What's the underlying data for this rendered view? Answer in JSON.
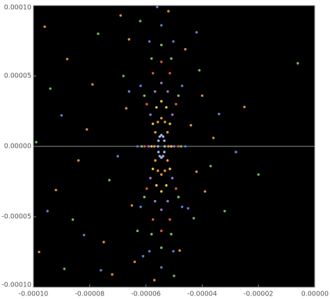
{
  "chart_data": {
    "type": "scatter",
    "xlim": [
      -0.0001,
      0.0
    ],
    "ylim": [
      -0.0001,
      0.0001
    ],
    "xticks": [
      {
        "value": -0.0001,
        "label": "-0.00010"
      },
      {
        "value": -8e-05,
        "label": "-0.00008"
      },
      {
        "value": -6e-05,
        "label": "-0.00006"
      },
      {
        "value": -4e-05,
        "label": "-0.00004"
      },
      {
        "value": -2e-05,
        "label": "-0.00002"
      },
      {
        "value": 0.0,
        "label": "0.00000"
      }
    ],
    "yticks": [
      {
        "value": -0.0001,
        "label": "-0.00010"
      },
      {
        "value": -5e-05,
        "label": "-0.00005"
      },
      {
        "value": 0.0,
        "label": "0.00000"
      },
      {
        "value": 5e-05,
        "label": "0.00005"
      },
      {
        "value": 0.0001,
        "label": "0.00010"
      }
    ],
    "zero_line": true,
    "series": [
      {
        "color": "#9fb4ec",
        "x": [
          -5.33e-05,
          -5.346e-05,
          -5.39e-05,
          -5.45e-05,
          -5.51e-05,
          -5.554e-05,
          -5.57e-05,
          -5.554e-05,
          -5.51e-05,
          -5.45e-05,
          -5.39e-05,
          -5.346e-05
        ],
        "y": [
          0,
          4e-06,
          6.93e-06,
          8e-06,
          6.93e-06,
          4e-06,
          0,
          -4e-06,
          -6.93e-06,
          -8e-06,
          -6.93e-06,
          -4e-06
        ]
      },
      {
        "color": "#e89a35",
        "x": [
          -5.2e-05,
          -5.233e-05,
          -5.325e-05,
          -5.45e-05,
          -5.575e-05,
          -5.667e-05,
          -5.7e-05,
          -5.667e-05,
          -5.575e-05,
          -5.45e-05,
          -5.325e-05,
          -5.233e-05
        ],
        "y": [
          0,
          1e-05,
          1.732e-05,
          2e-05,
          1.732e-05,
          1e-05,
          0,
          -1e-05,
          -1.732e-05,
          -2e-05,
          -1.732e-05,
          -1e-05
        ]
      },
      {
        "color": "#e8c43a",
        "x": [
          -5.1e-05,
          -5.147e-05,
          -5.275e-05,
          -5.45e-05,
          -5.625e-05,
          -5.753e-05,
          -5.8e-05,
          -5.753e-05,
          -5.625e-05,
          -5.45e-05,
          -5.275e-05,
          -5.147e-05
        ],
        "y": [
          0,
          1.6e-05,
          2.771e-05,
          3.2e-05,
          2.771e-05,
          1.6e-05,
          0,
          -1.6e-05,
          -2.771e-05,
          -3.2e-05,
          -2.771e-05,
          -1.6e-05
        ]
      },
      {
        "color": "#a070d0",
        "x": [
          -5e-05,
          -5.06e-05,
          -5.225e-05,
          -5.45e-05,
          -5.675e-05,
          -5.84e-05,
          -5.9e-05,
          -5.84e-05,
          -5.675e-05,
          -5.45e-05,
          -5.225e-05,
          -5.06e-05
        ],
        "y": [
          0,
          2.25e-05,
          3.897e-05,
          4.5e-05,
          3.897e-05,
          2.25e-05,
          0,
          -2.25e-05,
          -3.897e-05,
          -4.5e-05,
          -3.897e-05,
          -2.25e-05
        ]
      },
      {
        "color": "#d85a3a",
        "x": [
          -4.85e-05,
          -4.93e-05,
          -5.15e-05,
          -5.45e-05,
          -5.75e-05,
          -5.97e-05,
          -6.05e-05,
          -5.97e-05,
          -5.75e-05,
          -5.45e-05,
          -5.15e-05,
          -4.93e-05
        ],
        "y": [
          0,
          3e-05,
          5.196e-05,
          6e-05,
          5.196e-05,
          3e-05,
          0,
          -3e-05,
          -5.196e-05,
          -6e-05,
          -5.196e-05,
          -3e-05
        ]
      },
      {
        "color": "#7ac060",
        "x": [
          -4.75e-05,
          -4.844e-05,
          -5.1e-05,
          -5.45e-05,
          -5.8e-05,
          -6.056e-05,
          -6.15e-05,
          -6.056e-05,
          -5.8e-05,
          -5.45e-05,
          -5.1e-05,
          -4.844e-05
        ],
        "y": [
          0,
          3.6e-05,
          6.235e-05,
          7.2e-05,
          6.235e-05,
          3.6e-05,
          0,
          -3.6e-05,
          -6.235e-05,
          -7.2e-05,
          -6.235e-05,
          -3.6e-05
        ]
      },
      {
        "color": "#5a7ad8",
        "x": [
          -4.6e-05,
          -4.714e-05,
          -5.025e-05,
          -5.45e-05,
          -5.875e-05,
          -6.186e-05,
          -6.3e-05,
          -6.186e-05,
          -5.875e-05,
          -5.45e-05,
          -5.025e-05,
          -4.714e-05
        ],
        "y": [
          0,
          4.3e-05,
          7.448e-05,
          8.6e-05,
          7.448e-05,
          4.3e-05,
          0,
          -4.3e-05,
          -7.448e-05,
          -8.6e-05,
          -7.448e-05,
          -4.3e-05
        ]
      },
      {
        "color": "#d8893a",
        "x": [
          -9.6e-05,
          -8.8e-05,
          -9.2e-05,
          -8.1e-05,
          -7.5e-05,
          -7.9e-05,
          -6.9e-05,
          -7.2e-05,
          -6.7e-05,
          -6.5e-05,
          -6.6e-05,
          -6.4e-05,
          -4.4e-05,
          -4.2e-05,
          -4e-05,
          -3.9e-05,
          -4.6e-05,
          -4.8e-05,
          -3.6e-05,
          -5.2e-05,
          -5.7e-05,
          -9.8e-05,
          -8.4e-05,
          -2.5e-05
        ],
        "y": [
          8.5e-05,
          6.2e-05,
          -3.1e-05,
          1.2e-05,
          -6.8e-05,
          4.4e-05,
          9.3e-05,
          -9.1e-05,
          2.7e-05,
          -4.2e-05,
          7.6e-05,
          -8.2e-05,
          1.5e-05,
          -1.8e-05,
          3.6e-05,
          -3.2e-05,
          6.9e-05,
          -7.4e-05,
          6e-06,
          9.6e-05,
          -9.5e-05,
          -7.5e-05,
          -1e-05,
          2.8e-05
        ]
      },
      {
        "color": "#6fb45a",
        "x": [
          -9.4e-05,
          -8.6e-05,
          -7.7e-05,
          -7.3e-05,
          -6.8e-05,
          -6.3e-05,
          -6.2e-05,
          -4.3e-05,
          -4.1e-05,
          -3.7e-05,
          -8.9e-05,
          -9.9e-05,
          -5e-05,
          -3.2e-05,
          -6e-06,
          -2e-05
        ],
        "y": [
          4.1e-05,
          -5.2e-05,
          8e-05,
          -2.4e-05,
          5e-05,
          -6e-05,
          8.9e-05,
          -5.1e-05,
          5.4e-05,
          -1.4e-05,
          -8.7e-05,
          3e-06,
          -9.2e-05,
          -4.6e-05,
          5.9e-05,
          -2e-05
        ]
      },
      {
        "color": "#5f7fd0",
        "x": [
          -9e-05,
          -8.2e-05,
          -7e-05,
          -6.6e-05,
          -6.1e-05,
          -4.5e-05,
          -3.4e-05,
          -4.2e-05,
          -7.6e-05,
          -9.5e-05,
          -2.8e-05,
          -5.6e-05
        ],
        "y": [
          2.2e-05,
          -6.3e-05,
          -7e-06,
          3.9e-05,
          -7.8e-05,
          -4.4e-05,
          2.3e-05,
          8.1e-05,
          -8.8e-05,
          -4.6e-05,
          -4e-06,
          9.9e-05
        ]
      }
    ]
  }
}
